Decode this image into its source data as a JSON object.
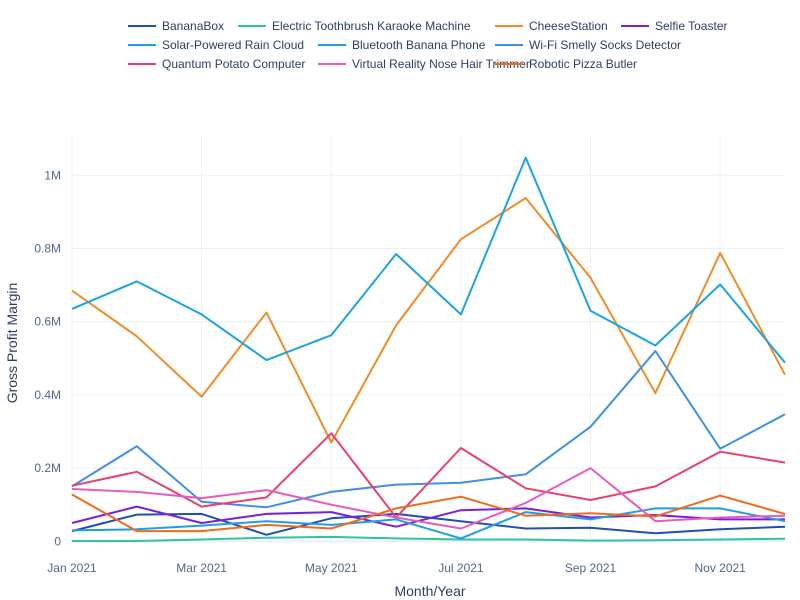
{
  "chart_data": {
    "type": "line",
    "xlabel": "Month/Year",
    "ylabel": "Gross Profit Margin",
    "x": [
      "2021-01",
      "2021-02",
      "2021-03",
      "2021-04",
      "2021-05",
      "2021-06",
      "2021-07",
      "2021-08",
      "2021-09",
      "2021-10",
      "2021-11",
      "2021-12"
    ],
    "x_tick_labels": [
      {
        "x": "2021-01",
        "label": "Jan 2021"
      },
      {
        "x": "2021-03",
        "label": "Mar 2021"
      },
      {
        "x": "2021-05",
        "label": "May 2021"
      },
      {
        "x": "2021-07",
        "label": "Jul 2021"
      },
      {
        "x": "2021-09",
        "label": "Sep 2021"
      },
      {
        "x": "2021-11",
        "label": "Nov 2021"
      }
    ],
    "ylim": [
      -10000,
      1110000
    ],
    "y_ticks": [
      {
        "value": 0,
        "label": "0"
      },
      {
        "value": 200000,
        "label": "0.2M"
      },
      {
        "value": 400000,
        "label": "0.4M"
      },
      {
        "value": 600000,
        "label": "0.6M"
      },
      {
        "value": 800000,
        "label": "0.8M"
      },
      {
        "value": 1000000,
        "label": "1M"
      }
    ],
    "grid": true,
    "legend_position": "top",
    "series": [
      {
        "name": "BananaBox",
        "color": "#1f4fb4",
        "values": [
          28000,
          73000,
          75000,
          18000,
          63000,
          75000,
          55000,
          35000,
          37000,
          22000,
          33000,
          40000
        ]
      },
      {
        "name": "Electric Toothbrush Karaoke Machine",
        "color": "#2ec4a0",
        "values": [
          1000,
          1000,
          5000,
          10000,
          12000,
          8000,
          5000,
          5000,
          2000,
          3000,
          5000,
          7000
        ]
      },
      {
        "name": "CheeseStation",
        "color": "#f08c28",
        "values": [
          685000,
          560000,
          395000,
          625000,
          270000,
          590000,
          825000,
          938000,
          720000,
          405000,
          788000,
          455000
        ]
      },
      {
        "name": "Selfie Toaster",
        "color": "#7b1fd4",
        "values": [
          50000,
          95000,
          50000,
          75000,
          80000,
          40000,
          85000,
          90000,
          65000,
          72000,
          60000,
          60000
        ]
      },
      {
        "name": "Solar-Powered Rain Cloud",
        "color": "#1aa3e6",
        "values": [
          635000,
          710000,
          620000,
          495000,
          563000,
          785000,
          620000,
          1048000,
          630000,
          535000,
          702000,
          488000
        ]
      },
      {
        "name": "Bluetooth Banana Phone",
        "color": "#1f9fe0",
        "values": [
          30000,
          33000,
          43000,
          55000,
          45000,
          60000,
          8000,
          80000,
          60000,
          90000,
          90000,
          55000
        ]
      },
      {
        "name": "Wi-Fi Smelly Socks Detector",
        "color": "#3d8fe8",
        "values": [
          150000,
          260000,
          108000,
          93000,
          135000,
          155000,
          160000,
          183000,
          313000,
          520000,
          253000,
          347000
        ]
      },
      {
        "name": "Quantum Potato Computer",
        "color": "#e8406a",
        "values": [
          152000,
          190000,
          95000,
          120000,
          295000,
          65000,
          255000,
          145000,
          113000,
          150000,
          245000,
          215000
        ]
      },
      {
        "name": "Virtual Reality Nose Hair Trimmer",
        "color": "#e85ac0",
        "values": [
          143000,
          135000,
          118000,
          140000,
          100000,
          65000,
          35000,
          105000,
          200000,
          55000,
          65000,
          70000
        ]
      },
      {
        "name": "Robotic Pizza Butler",
        "color": "#f06a1e",
        "values": [
          128000,
          28000,
          28000,
          45000,
          35000,
          90000,
          122000,
          70000,
          77000,
          68000,
          125000,
          75000
        ]
      }
    ]
  }
}
